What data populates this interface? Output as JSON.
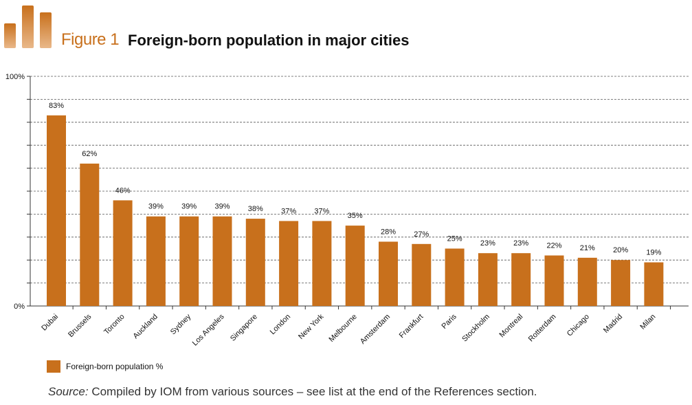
{
  "header": {
    "figure_label": "Figure 1",
    "title": "Foreign-born population in major cities"
  },
  "colors": {
    "accent": "#c8701c",
    "bar": "#c8701c",
    "grid": "#555555"
  },
  "chart_data": {
    "type": "bar",
    "title": "Foreign-born population in major cities",
    "xlabel": "",
    "ylabel": "",
    "ylim": [
      0,
      100
    ],
    "yticks": [
      "0%",
      "100%"
    ],
    "grid": true,
    "legend_placement": "bottom-left",
    "categories": [
      "Dubai",
      "Brussels",
      "Toronto",
      "Auckland",
      "Sydney",
      "Los Angeles",
      "Singapore",
      "London",
      "New York",
      "Melbourne",
      "Amsterdam",
      "Frankfurt",
      "Paris",
      "Stockholm",
      "Montreal",
      "Rotterdam",
      "Chicago",
      "Madrid",
      "Milan"
    ],
    "series": [
      {
        "name": "Foreign-born population %",
        "values": [
          83,
          62,
          46,
          39,
          39,
          39,
          38,
          37,
          37,
          35,
          28,
          27,
          25,
          23,
          23,
          22,
          21,
          20,
          19
        ],
        "labels": [
          "83%",
          "62%",
          "46%",
          "39%",
          "39%",
          "39%",
          "38%",
          "37%",
          "37%",
          "35%",
          "28%",
          "27%",
          "25%",
          "23%",
          "23%",
          "22%",
          "21%",
          "20%",
          "19%"
        ]
      }
    ]
  },
  "legend": {
    "label": "Foreign-born population %"
  },
  "source": {
    "prefix": "Source:",
    "text": " Compiled by IOM from various sources – see list at the end of the References section."
  }
}
